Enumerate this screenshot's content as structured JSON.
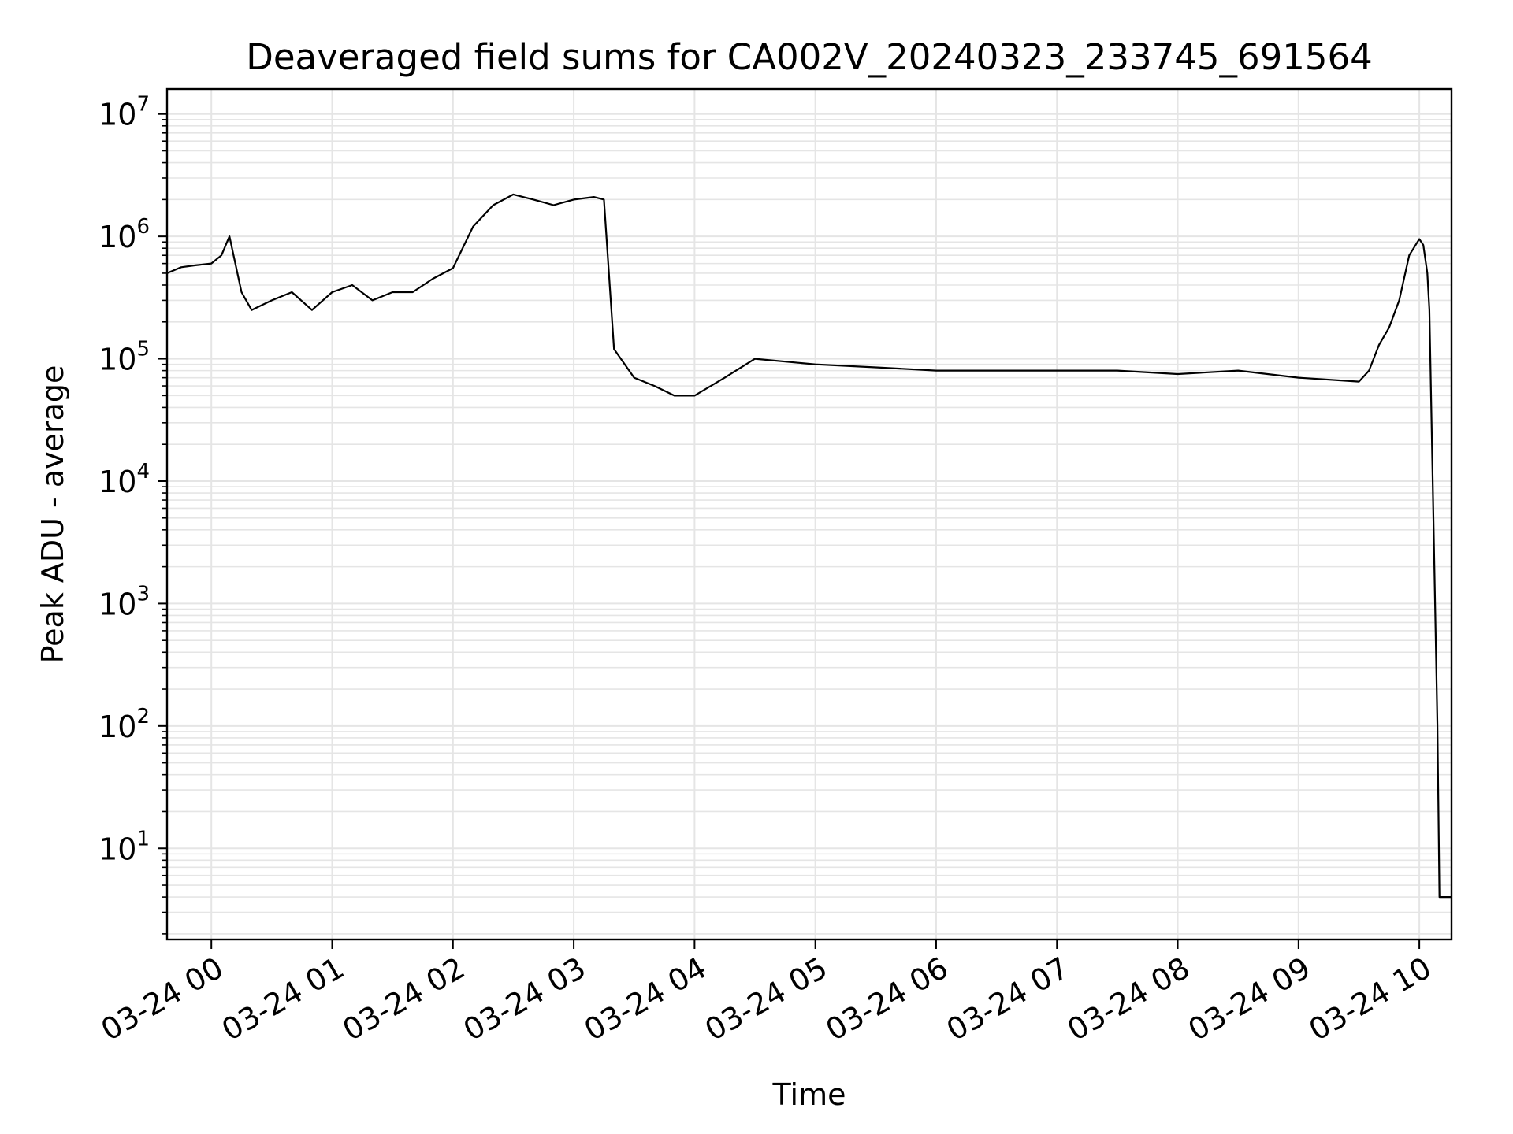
{
  "chart_data": {
    "type": "line",
    "title": "Deaveraged field sums for CA002V_20240323_233745_691564",
    "xlabel": "Time",
    "ylabel": "Peak ADU - average",
    "x_scale": "time",
    "y_scale": "log",
    "xlim": [
      "2024-03-23 23:38",
      "2024-03-24 10:16"
    ],
    "ylim": [
      1.8,
      16000000
    ],
    "x_ticks": [
      {
        "value": "2024-03-24 00:00",
        "label": "03-24 00"
      },
      {
        "value": "2024-03-24 01:00",
        "label": "03-24 01"
      },
      {
        "value": "2024-03-24 02:00",
        "label": "03-24 02"
      },
      {
        "value": "2024-03-24 03:00",
        "label": "03-24 03"
      },
      {
        "value": "2024-03-24 04:00",
        "label": "03-24 04"
      },
      {
        "value": "2024-03-24 05:00",
        "label": "03-24 05"
      },
      {
        "value": "2024-03-24 06:00",
        "label": "03-24 06"
      },
      {
        "value": "2024-03-24 07:00",
        "label": "03-24 07"
      },
      {
        "value": "2024-03-24 08:00",
        "label": "03-24 08"
      },
      {
        "value": "2024-03-24 09:00",
        "label": "03-24 09"
      },
      {
        "value": "2024-03-24 10:00",
        "label": "03-24 10"
      }
    ],
    "y_ticks": [
      {
        "value": 10,
        "base": "10",
        "exp": "1"
      },
      {
        "value": 100,
        "base": "10",
        "exp": "2"
      },
      {
        "value": 1000,
        "base": "10",
        "exp": "3"
      },
      {
        "value": 10000,
        "base": "10",
        "exp": "4"
      },
      {
        "value": 100000,
        "base": "10",
        "exp": "5"
      },
      {
        "value": 1000000,
        "base": "10",
        "exp": "6"
      },
      {
        "value": 10000000,
        "base": "10",
        "exp": "7"
      }
    ],
    "grid": true,
    "legend": "none",
    "colors": {
      "line": "#000000",
      "grid": "#e5e5e5",
      "axes": "#000000"
    },
    "series": [
      {
        "x": [
          "2024-03-23 23:38",
          "2024-03-23 23:45",
          "2024-03-23 23:52",
          "2024-03-24 00:00",
          "2024-03-24 00:05",
          "2024-03-24 00:09",
          "2024-03-24 00:15",
          "2024-03-24 00:20",
          "2024-03-24 00:30",
          "2024-03-24 00:40",
          "2024-03-24 00:50",
          "2024-03-24 01:00",
          "2024-03-24 01:10",
          "2024-03-24 01:20",
          "2024-03-24 01:30",
          "2024-03-24 01:40",
          "2024-03-24 01:50",
          "2024-03-24 02:00",
          "2024-03-24 02:10",
          "2024-03-24 02:20",
          "2024-03-24 02:30",
          "2024-03-24 02:40",
          "2024-03-24 02:50",
          "2024-03-24 03:00",
          "2024-03-24 03:10",
          "2024-03-24 03:15",
          "2024-03-24 03:20",
          "2024-03-24 03:30",
          "2024-03-24 03:40",
          "2024-03-24 03:50",
          "2024-03-24 04:00",
          "2024-03-24 04:15",
          "2024-03-24 04:30",
          "2024-03-24 05:00",
          "2024-03-24 05:30",
          "2024-03-24 06:00",
          "2024-03-24 06:30",
          "2024-03-24 07:00",
          "2024-03-24 07:30",
          "2024-03-24 08:00",
          "2024-03-24 08:30",
          "2024-03-24 09:00",
          "2024-03-24 09:30",
          "2024-03-24 09:35",
          "2024-03-24 09:40",
          "2024-03-24 09:45",
          "2024-03-24 09:50",
          "2024-03-24 09:55",
          "2024-03-24 10:00",
          "2024-03-24 10:02",
          "2024-03-24 10:04",
          "2024-03-24 10:05",
          "2024-03-24 10:07",
          "2024-03-24 10:09",
          "2024-03-24 10:10",
          "2024-03-24 10:11",
          "2024-03-24 10:16"
        ],
        "y": [
          500000,
          560000,
          580000,
          600000,
          700000,
          1000000,
          350000,
          250000,
          300000,
          350000,
          250000,
          350000,
          400000,
          300000,
          350000,
          350000,
          450000,
          550000,
          1200000,
          1800000,
          2200000,
          2000000,
          1800000,
          2000000,
          2100000,
          2000000,
          120000,
          70000,
          60000,
          50000,
          50000,
          70000,
          100000,
          90000,
          85000,
          80000,
          80000,
          80000,
          80000,
          75000,
          80000,
          70000,
          65000,
          80000,
          130000,
          180000,
          300000,
          700000,
          950000,
          850000,
          500000,
          250000,
          5000,
          100,
          4,
          4,
          4
        ]
      }
    ]
  }
}
